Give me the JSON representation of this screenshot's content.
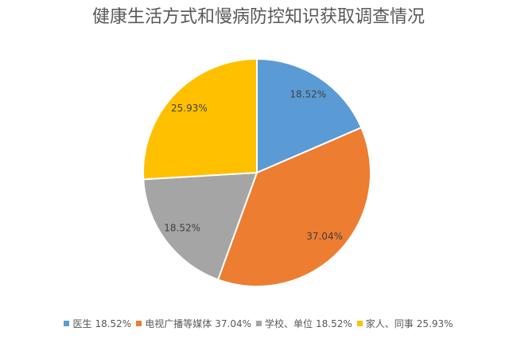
{
  "chart_data": {
    "type": "pie",
    "title": "健康生活方式和慢病防控知识获取调查情况",
    "categories": [
      "医生",
      "电视广播等媒体",
      "学校、单位",
      "家人、同事"
    ],
    "values": [
      18.52,
      37.04,
      18.52,
      25.93
    ],
    "value_labels": [
      "18.52%",
      "37.04%",
      "18.52%",
      "25.93%"
    ],
    "colors": [
      "#5b9bd5",
      "#ed7d31",
      "#a5a5a5",
      "#ffc000"
    ],
    "legend": "bottom"
  }
}
